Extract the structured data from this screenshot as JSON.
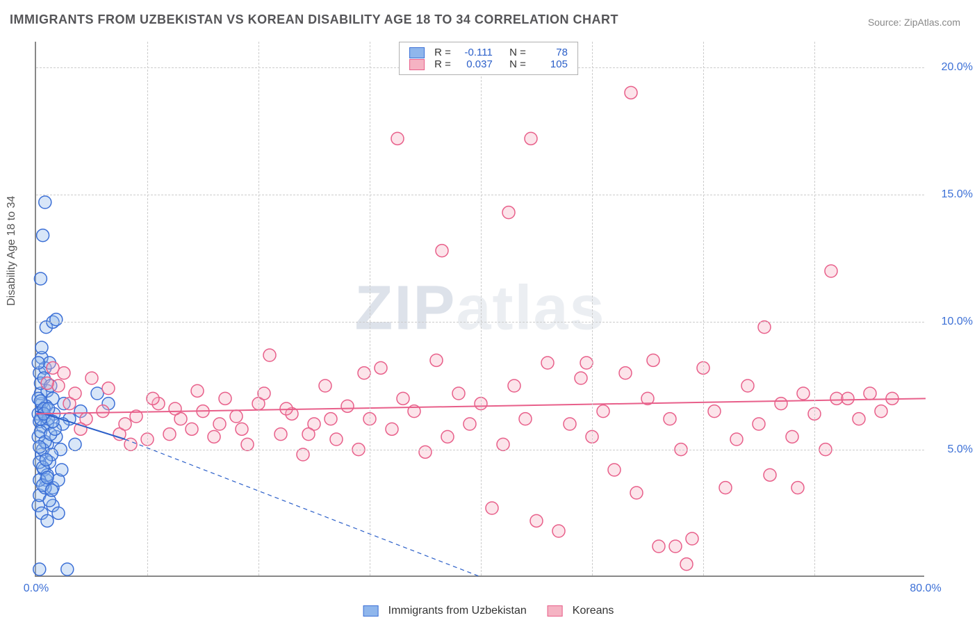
{
  "title": "IMMIGRANTS FROM UZBEKISTAN VS KOREAN DISABILITY AGE 18 TO 34 CORRELATION CHART",
  "source_label": "Source: ZipAtlas.com",
  "ylabel": "Disability Age 18 to 34",
  "watermark_a": "ZIP",
  "watermark_b": "atlas",
  "chart": {
    "type": "scatter",
    "background_color": "#ffffff",
    "grid_color": "#cccccc",
    "axis_color": "#888888",
    "tick_color": "#3b6fd6",
    "tick_fontsize": 16,
    "title_fontsize": 18,
    "title_color": "#555558",
    "xlim": [
      0,
      80
    ],
    "ylim": [
      0,
      21
    ],
    "xticks": [
      0,
      80
    ],
    "xtick_labels": [
      "0.0%",
      "80.0%"
    ],
    "xgrid_positions": [
      10,
      20,
      30,
      40,
      50,
      60,
      70
    ],
    "yticks": [
      5,
      10,
      15,
      20
    ],
    "ytick_labels": [
      "5.0%",
      "10.0%",
      "15.0%",
      "20.0%"
    ],
    "marker_radius": 9,
    "marker_stroke_width": 1.5,
    "marker_fill_opacity": 0.35,
    "series": [
      {
        "name": "Immigrants from Uzbekistan",
        "fill_color": "#8fb6ec",
        "stroke_color": "#3b6fd6",
        "R": "-0.111",
        "N": "78",
        "trend_start": [
          0,
          6.5
        ],
        "trend_end": [
          8,
          5.4
        ],
        "trend_extend_end": [
          40,
          0
        ],
        "trend_color": "#2b5fc9",
        "trend_width": 2,
        "points": [
          [
            0.2,
            6.4
          ],
          [
            0.3,
            6.1
          ],
          [
            0.5,
            6.8
          ],
          [
            0.4,
            7.2
          ],
          [
            0.6,
            5.9
          ],
          [
            0.8,
            6.3
          ],
          [
            1.0,
            6.0
          ],
          [
            0.5,
            4.8
          ],
          [
            0.7,
            4.2
          ],
          [
            1.2,
            4.5
          ],
          [
            0.9,
            3.8
          ],
          [
            1.5,
            3.5
          ],
          [
            2.0,
            3.8
          ],
          [
            2.3,
            4.2
          ],
          [
            1.0,
            7.3
          ],
          [
            1.5,
            7.0
          ],
          [
            2.5,
            6.8
          ],
          [
            3.0,
            6.2
          ],
          [
            4.0,
            6.5
          ],
          [
            5.5,
            7.2
          ],
          [
            6.5,
            6.8
          ],
          [
            0.3,
            8.0
          ],
          [
            0.8,
            8.2
          ],
          [
            0.5,
            8.6
          ],
          [
            1.2,
            8.4
          ],
          [
            0.9,
            9.8
          ],
          [
            1.5,
            10.0
          ],
          [
            1.8,
            10.1
          ],
          [
            0.4,
            11.7
          ],
          [
            0.6,
            13.4
          ],
          [
            0.8,
            14.7
          ],
          [
            1.0,
            5.2
          ],
          [
            1.8,
            5.5
          ],
          [
            2.2,
            5.0
          ],
          [
            3.5,
            5.2
          ],
          [
            0.2,
            2.8
          ],
          [
            0.5,
            2.5
          ],
          [
            1.0,
            2.2
          ],
          [
            1.5,
            2.8
          ],
          [
            2.0,
            2.5
          ],
          [
            0.3,
            0.3
          ],
          [
            2.8,
            0.3
          ],
          [
            0.4,
            7.6
          ],
          [
            0.7,
            7.8
          ],
          [
            1.3,
            7.5
          ],
          [
            0.2,
            5.5
          ],
          [
            0.6,
            5.0
          ],
          [
            1.0,
            4.0
          ],
          [
            1.4,
            4.8
          ],
          [
            0.3,
            3.2
          ],
          [
            0.8,
            3.5
          ],
          [
            1.2,
            3.0
          ],
          [
            0.5,
            6.5
          ],
          [
            0.9,
            6.7
          ],
          [
            1.6,
            6.4
          ],
          [
            2.4,
            6.0
          ],
          [
            0.2,
            7.0
          ],
          [
            0.4,
            6.9
          ],
          [
            0.7,
            6.6
          ],
          [
            1.1,
            6.2
          ],
          [
            0.3,
            4.5
          ],
          [
            0.6,
            4.3
          ],
          [
            0.9,
            4.6
          ],
          [
            0.4,
            5.7
          ],
          [
            0.8,
            5.3
          ],
          [
            1.3,
            5.6
          ],
          [
            1.7,
            5.8
          ],
          [
            0.2,
            8.4
          ],
          [
            0.5,
            9.0
          ],
          [
            0.3,
            3.8
          ],
          [
            0.6,
            3.6
          ],
          [
            1.0,
            3.9
          ],
          [
            1.4,
            3.4
          ],
          [
            0.4,
            6.2
          ],
          [
            0.7,
            6.4
          ],
          [
            1.1,
            6.6
          ],
          [
            1.5,
            6.1
          ],
          [
            0.3,
            5.1
          ]
        ]
      },
      {
        "name": "Koreans",
        "fill_color": "#f5b3c3",
        "stroke_color": "#e85f8a",
        "R": "0.037",
        "N": "105",
        "trend_start": [
          0,
          6.4
        ],
        "trend_end": [
          80,
          7.0
        ],
        "trend_color": "#e85f8a",
        "trend_width": 2,
        "points": [
          [
            1.5,
            8.2
          ],
          [
            2.0,
            7.5
          ],
          [
            3.0,
            6.8
          ],
          [
            4.5,
            6.2
          ],
          [
            5.0,
            7.8
          ],
          [
            6.0,
            6.5
          ],
          [
            7.5,
            5.6
          ],
          [
            8.0,
            6.0
          ],
          [
            9.0,
            6.3
          ],
          [
            10.0,
            5.4
          ],
          [
            11.0,
            6.8
          ],
          [
            12.0,
            5.6
          ],
          [
            13.0,
            6.2
          ],
          [
            14.0,
            5.8
          ],
          [
            15.0,
            6.5
          ],
          [
            16.0,
            5.5
          ],
          [
            17.0,
            7.0
          ],
          [
            18.0,
            6.3
          ],
          [
            19.0,
            5.2
          ],
          [
            20.0,
            6.8
          ],
          [
            21.0,
            8.7
          ],
          [
            22.0,
            5.6
          ],
          [
            23.0,
            6.4
          ],
          [
            24.0,
            4.8
          ],
          [
            25.0,
            6.0
          ],
          [
            26.0,
            7.5
          ],
          [
            27.0,
            5.4
          ],
          [
            28.0,
            6.7
          ],
          [
            29.0,
            5.0
          ],
          [
            29.5,
            8.0
          ],
          [
            30.0,
            6.2
          ],
          [
            31.0,
            8.2
          ],
          [
            32.0,
            5.8
          ],
          [
            32.5,
            17.2
          ],
          [
            33.0,
            7.0
          ],
          [
            34.0,
            6.5
          ],
          [
            35.0,
            4.9
          ],
          [
            36.0,
            8.5
          ],
          [
            36.5,
            12.8
          ],
          [
            37.0,
            5.5
          ],
          [
            38.0,
            7.2
          ],
          [
            39.0,
            6.0
          ],
          [
            40.0,
            6.8
          ],
          [
            41.0,
            2.7
          ],
          [
            42.0,
            5.2
          ],
          [
            42.5,
            14.3
          ],
          [
            43.0,
            7.5
          ],
          [
            44.0,
            6.2
          ],
          [
            44.5,
            17.2
          ],
          [
            45.0,
            2.2
          ],
          [
            46.0,
            8.4
          ],
          [
            47.0,
            1.8
          ],
          [
            48.0,
            6.0
          ],
          [
            49.0,
            7.8
          ],
          [
            49.5,
            8.4
          ],
          [
            50.0,
            5.5
          ],
          [
            51.0,
            6.5
          ],
          [
            52.0,
            4.2
          ],
          [
            53.0,
            8.0
          ],
          [
            53.5,
            19.0
          ],
          [
            54.0,
            3.3
          ],
          [
            55.0,
            7.0
          ],
          [
            55.5,
            8.5
          ],
          [
            56.0,
            1.2
          ],
          [
            57.0,
            6.2
          ],
          [
            57.5,
            1.2
          ],
          [
            58.0,
            5.0
          ],
          [
            58.5,
            0.5
          ],
          [
            59.0,
            1.5
          ],
          [
            60.0,
            8.2
          ],
          [
            61.0,
            6.5
          ],
          [
            62.0,
            3.5
          ],
          [
            63.0,
            5.4
          ],
          [
            64.0,
            7.5
          ],
          [
            65.0,
            6.0
          ],
          [
            65.5,
            9.8
          ],
          [
            66.0,
            4.0
          ],
          [
            67.0,
            6.8
          ],
          [
            68.0,
            5.5
          ],
          [
            68.5,
            3.5
          ],
          [
            69.0,
            7.2
          ],
          [
            70.0,
            6.4
          ],
          [
            71.0,
            5.0
          ],
          [
            71.5,
            12.0
          ],
          [
            72.0,
            7.0
          ],
          [
            73.0,
            7.0
          ],
          [
            74.0,
            6.2
          ],
          [
            75.0,
            7.2
          ],
          [
            76.0,
            6.5
          ],
          [
            77.0,
            7.0
          ],
          [
            1.0,
            7.6
          ],
          [
            2.5,
            8.0
          ],
          [
            3.5,
            7.2
          ],
          [
            4.0,
            5.8
          ],
          [
            6.5,
            7.4
          ],
          [
            8.5,
            5.2
          ],
          [
            10.5,
            7.0
          ],
          [
            12.5,
            6.6
          ],
          [
            14.5,
            7.3
          ],
          [
            16.5,
            6.0
          ],
          [
            18.5,
            5.8
          ],
          [
            20.5,
            7.2
          ],
          [
            22.5,
            6.6
          ],
          [
            24.5,
            5.6
          ],
          [
            26.5,
            6.2
          ]
        ]
      }
    ],
    "legend_bottom": [
      {
        "swatch_fill": "#8fb6ec",
        "swatch_stroke": "#3b6fd6",
        "label": "Immigrants from Uzbekistan"
      },
      {
        "swatch_fill": "#f5b3c3",
        "swatch_stroke": "#e85f8a",
        "label": "Koreans"
      }
    ]
  }
}
